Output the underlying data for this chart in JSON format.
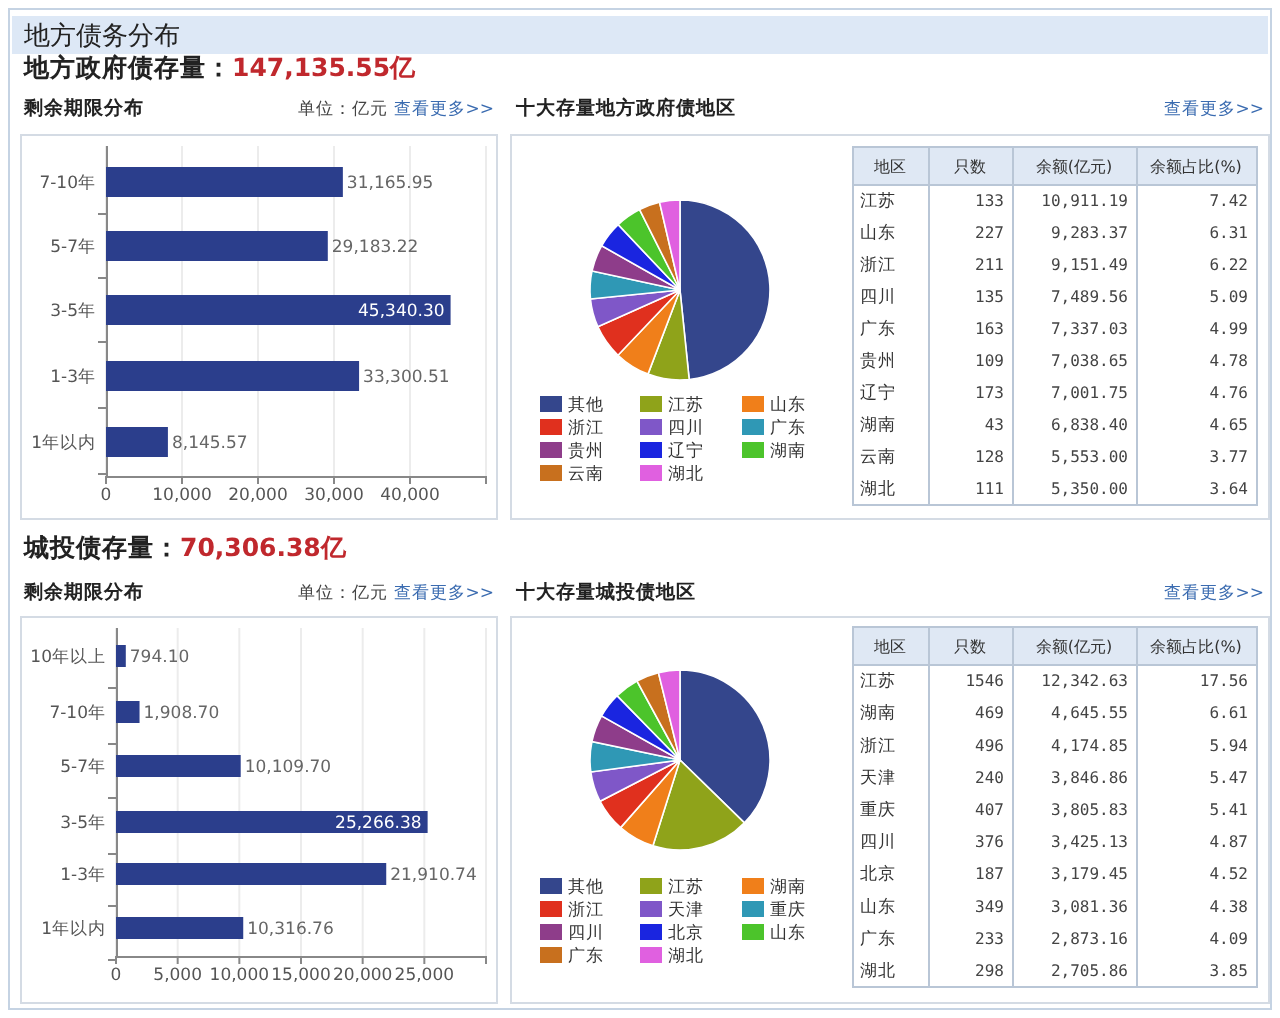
{
  "chart_data": [
    {
      "type": "bar",
      "orientation": "horizontal",
      "title": "剩余期限分布",
      "annotations": [
        "地方债务分布",
        "地方政府债存量：",
        "147,135.55亿",
        "单位：亿元",
        "查看更多>>"
      ],
      "categories": [
        "7-10年",
        "5-7年",
        "3-5年",
        "1-3年",
        "1年以内"
      ],
      "values": [
        31165.95,
        29183.22,
        45340.3,
        33300.51,
        8145.57
      ],
      "value_labels": [
        "31,165.95",
        "29,183.22",
        "45,340.30",
        "33,300.51",
        "8,145.57"
      ],
      "color": "#2b3e8c",
      "xlim": [
        0,
        50000
      ],
      "xticks": [
        {
          "value": 0,
          "label": "0"
        },
        {
          "value": 10000,
          "label": "10,000"
        },
        {
          "value": 20000,
          "label": "20,000"
        },
        {
          "value": 30000,
          "label": "30,000"
        },
        {
          "value": 40000,
          "label": "40,000"
        },
        {
          "value": 50000,
          "label": null
        }
      ],
      "grid": "x"
    },
    {
      "type": "pie",
      "title": "十大存量地方政府债地区",
      "annotations": [
        "查看更多>>"
      ],
      "legend": "bottom",
      "categories": [
        "其他",
        "江苏",
        "山东",
        "浙江",
        "四川",
        "广东",
        "贵州",
        "辽宁",
        "湖南",
        "云南",
        "湖北"
      ],
      "values": [
        48.37,
        7.42,
        6.31,
        6.22,
        5.09,
        4.99,
        4.78,
        4.76,
        4.65,
        3.77,
        3.64
      ],
      "colors": [
        "#34468c",
        "#8fa31a",
        "#f07f1a",
        "#e0301e",
        "#7f57c8",
        "#2f98b5",
        "#8e3d8a",
        "#1a25e0",
        "#4cc42b",
        "#c8701e",
        "#e060e0"
      ]
    },
    {
      "type": "other",
      "data_labels": true,
      "xlabel": "地区",
      "categories": [
        "江苏",
        "山东",
        "浙江",
        "四川",
        "广东",
        "贵州",
        "辽宁",
        "湖南",
        "云南",
        "湖北"
      ],
      "series": [
        {
          "name": "只数",
          "values": [
            133,
            227,
            211,
            135,
            163,
            109,
            173,
            43,
            128,
            111
          ]
        },
        {
          "name": "余额(亿元)",
          "values": [
            10911.19,
            9283.37,
            9151.49,
            7489.56,
            7337.03,
            7038.65,
            7001.75,
            6838.4,
            5553.0,
            5350.0
          ],
          "value_labels": [
            "10,911.19",
            "9,283.37",
            "9,151.49",
            "7,489.56",
            "7,337.03",
            "7,038.65",
            "7,001.75",
            "6,838.40",
            "5,553.00",
            "5,350.00"
          ]
        },
        {
          "name": "余额占比(%)",
          "values": [
            7.42,
            6.31,
            6.22,
            5.09,
            4.99,
            4.78,
            4.76,
            4.65,
            3.77,
            3.64
          ]
        }
      ]
    },
    {
      "type": "bar",
      "orientation": "horizontal",
      "title": "剩余期限分布",
      "annotations": [
        "城投债存量：",
        "70,306.38亿",
        "单位：亿元",
        "查看更多>>"
      ],
      "categories": [
        "10年以上",
        "7-10年",
        "5-7年",
        "3-5年",
        "1-3年",
        "1年以内"
      ],
      "values": [
        794.1,
        1908.7,
        10109.7,
        25266.38,
        21910.74,
        10316.76
      ],
      "value_labels": [
        "794.10",
        "1,908.70",
        "10,109.70",
        "25,266.38",
        "21,910.74",
        "10,316.76"
      ],
      "color": "#2b3e8c",
      "xlim": [
        0,
        30000
      ],
      "xticks": [
        {
          "value": 0,
          "label": "0"
        },
        {
          "value": 5000,
          "label": "5,000"
        },
        {
          "value": 10000,
          "label": "10,000"
        },
        {
          "value": 15000,
          "label": "15,000"
        },
        {
          "value": 20000,
          "label": "20,000"
        },
        {
          "value": 25000,
          "label": "25,000"
        },
        {
          "value": 30000,
          "label": null
        }
      ],
      "grid": "x"
    },
    {
      "type": "pie",
      "title": "十大存量城投债地区",
      "annotations": [
        "查看更多>>"
      ],
      "legend": "bottom",
      "categories": [
        "其他",
        "江苏",
        "湖南",
        "浙江",
        "天津",
        "重庆",
        "四川",
        "北京",
        "山东",
        "广东",
        "湖北"
      ],
      "values": [
        37.3,
        17.56,
        6.61,
        5.94,
        5.47,
        5.41,
        4.87,
        4.52,
        4.38,
        4.09,
        3.85
      ],
      "colors": [
        "#34468c",
        "#8fa31a",
        "#f07f1a",
        "#e0301e",
        "#7f57c8",
        "#2f98b5",
        "#8e3d8a",
        "#1a25e0",
        "#4cc42b",
        "#c8701e",
        "#e060e0"
      ]
    },
    {
      "type": "other",
      "data_labels": true,
      "xlabel": "地区",
      "categories": [
        "江苏",
        "湖南",
        "浙江",
        "天津",
        "重庆",
        "四川",
        "北京",
        "山东",
        "广东",
        "湖北"
      ],
      "series": [
        {
          "name": "只数",
          "values": [
            1546,
            469,
            496,
            240,
            407,
            376,
            187,
            349,
            233,
            298
          ]
        },
        {
          "name": "余额(亿元)",
          "values": [
            12342.63,
            4645.55,
            4174.85,
            3846.86,
            3805.83,
            3425.13,
            3179.45,
            3081.36,
            2873.16,
            2705.86
          ],
          "value_labels": [
            "12,342.63",
            "4,645.55",
            "4,174.85",
            "3,846.86",
            "3,805.83",
            "3,425.13",
            "3,179.45",
            "3,081.36",
            "2,873.16",
            "2,705.86"
          ]
        },
        {
          "name": "余额占比(%)",
          "values": [
            17.56,
            6.61,
            5.94,
            5.47,
            5.41,
            4.87,
            4.52,
            4.38,
            4.09,
            3.85
          ]
        }
      ]
    }
  ]
}
